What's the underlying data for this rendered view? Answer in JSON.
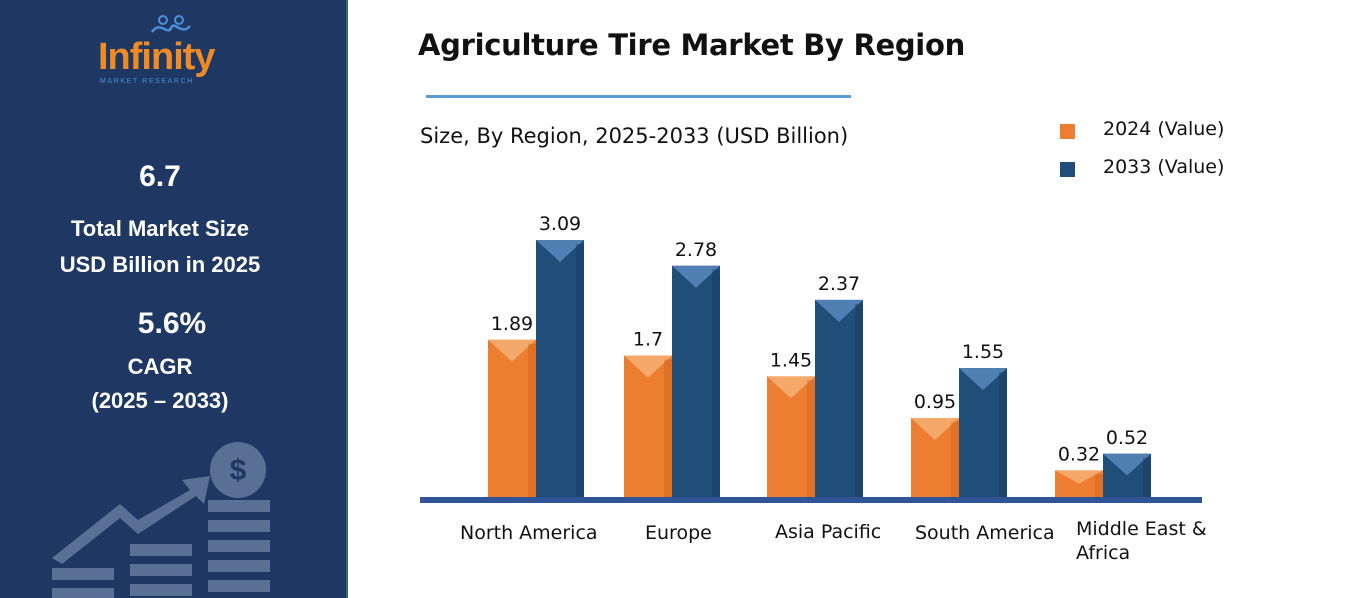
{
  "sidebar": {
    "logo": {
      "word": "Infinity",
      "sub": "MARKET RESEARCH"
    },
    "market_size_value": "6.7",
    "market_size_line1": "Total Market Size",
    "market_size_line2": "USD Billion in 2025",
    "cagr_value": "5.6%",
    "cagr_label": "CAGR",
    "cagr_period": "(2025 – 2033)",
    "decor_icon": "dollar-growth-icon"
  },
  "colors": {
    "sidebar_bg": "#1f3863",
    "series_2024": "#ed7d31",
    "series_2033": "#1f4e79",
    "axis_line": "#2f5597",
    "title_rule": "#5b9bd5"
  },
  "chart_data": {
    "type": "bar",
    "title": "Agriculture Tire Market By Region",
    "subtitle": "Size, By Region, 2025-2033 (USD Billion)",
    "categories": [
      "North America",
      "Europe",
      "Asia Pacific",
      "South America",
      "Middle East & Africa"
    ],
    "series": [
      {
        "name": "2024 (Value)",
        "values": [
          1.89,
          1.7,
          1.45,
          0.95,
          0.32
        ],
        "labels": [
          "1.89",
          "1.7",
          "1.45",
          "0.95",
          "0.32"
        ]
      },
      {
        "name": "2033 (Value)",
        "values": [
          3.09,
          2.78,
          2.37,
          1.55,
          0.52
        ],
        "labels": [
          "3.09",
          "2.78",
          "2.37",
          "1.55",
          "0.52"
        ]
      }
    ],
    "ylim": [
      0,
      3.09
    ],
    "grid": false,
    "legend": "top-right"
  }
}
